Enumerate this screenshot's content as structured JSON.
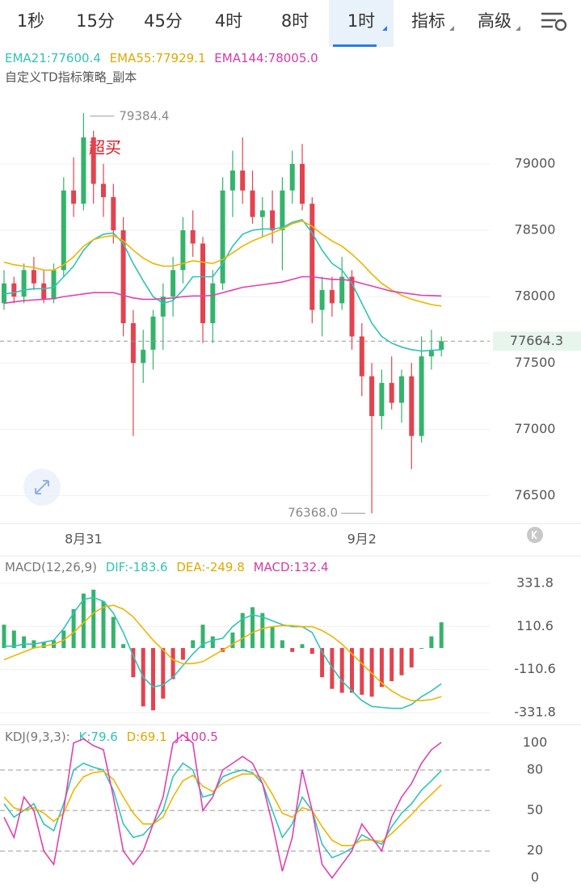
{
  "tabs": [
    "1秒",
    "15分",
    "45分",
    "4时",
    "8时",
    "1时",
    "指标",
    "高级"
  ],
  "selected_tab": 5,
  "chart_data": [
    {
      "type": "candlestick",
      "legend_labels": [
        "EMA21:77600.4",
        "EMA55:77929.1",
        "EMA144:78005.0"
      ],
      "subtitle": "自定义TD指标策略_副本",
      "annotation": "超买",
      "max_label": "79384.4",
      "min_label": "76368.0",
      "last_price_label": "77664.3",
      "categories": [
        null,
        null,
        null,
        null,
        null,
        null,
        null,
        null,
        "8月31",
        null,
        null,
        null,
        null,
        null,
        null,
        null,
        null,
        null,
        null,
        null,
        null,
        null,
        null,
        null,
        null,
        null,
        null,
        null,
        null,
        null,
        null,
        null,
        null,
        null,
        null,
        null,
        "9月2",
        null,
        null,
        null,
        null,
        null,
        null,
        null,
        null
      ],
      "open": [
        77950,
        78100,
        78000,
        78200,
        78100,
        77980,
        78200,
        78800,
        78700,
        79200,
        78850,
        78750,
        78500,
        77800,
        77500,
        77600,
        77850,
        78000,
        78200,
        78500,
        78400,
        77800,
        78100,
        78800,
        78950,
        78800,
        78600,
        78650,
        78500,
        78800,
        79000,
        78700,
        77900,
        78050,
        77950,
        78150,
        77700,
        77400,
        77100,
        77350,
        77200,
        77400,
        76950,
        77550,
        77600
      ],
      "high": [
        78200,
        78150,
        78250,
        78300,
        78200,
        78250,
        78900,
        79050,
        79384.4,
        79250,
        79000,
        78850,
        78600,
        77900,
        77750,
        77900,
        78100,
        78300,
        78600,
        78650,
        78450,
        78200,
        78900,
        79100,
        79200,
        78950,
        78750,
        78800,
        78900,
        79100,
        79150,
        78750,
        78150,
        78150,
        78300,
        78200,
        77800,
        77500,
        77450,
        77550,
        77450,
        77500,
        77700,
        77750,
        77700
      ],
      "low": [
        77900,
        77950,
        77950,
        78050,
        77950,
        77950,
        78150,
        78600,
        78650,
        78700,
        78600,
        78400,
        77700,
        76950,
        77350,
        77450,
        77600,
        77850,
        78100,
        78300,
        77650,
        77650,
        78050,
        78600,
        78700,
        78550,
        78450,
        78400,
        78200,
        78700,
        78650,
        77800,
        77700,
        77850,
        77900,
        77600,
        77250,
        76368,
        77000,
        77150,
        77050,
        76700,
        76900,
        77450,
        77550
      ],
      "close": [
        78100,
        78000,
        78200,
        78100,
        77980,
        78200,
        78800,
        78700,
        79200,
        78850,
        78750,
        78500,
        77800,
        77500,
        77600,
        77850,
        78000,
        78200,
        78500,
        78400,
        77800,
        78100,
        78800,
        78950,
        78800,
        78600,
        78650,
        78500,
        78800,
        79000,
        78700,
        77900,
        78050,
        77950,
        78150,
        77700,
        77400,
        77100,
        77350,
        77200,
        77400,
        76950,
        77550,
        77600,
        77664.3
      ],
      "colors": {
        "up": "#35b36b",
        "down": "#e2434f"
      },
      "series": [
        {
          "color": "#2ec4b6",
          "values": [
            78020,
            78030,
            78050,
            78060,
            78060,
            78070,
            78150,
            78230,
            78350,
            78430,
            78470,
            78480,
            78400,
            78250,
            78120,
            78000,
            77950,
            77970,
            78050,
            78150,
            78150,
            78150,
            78250,
            78380,
            78470,
            78500,
            78510,
            78510,
            78520,
            78560,
            78580,
            78480,
            78350,
            78250,
            78200,
            78100,
            77950,
            77800,
            77700,
            77650,
            77620,
            77600,
            77590,
            77595,
            77600.4
          ]
        },
        {
          "color": "#f0b400",
          "values": [
            78260,
            78240,
            78230,
            78220,
            78200,
            78200,
            78240,
            78300,
            78380,
            78430,
            78450,
            78460,
            78420,
            78350,
            78290,
            78250,
            78230,
            78230,
            78250,
            78270,
            78260,
            78250,
            78280,
            78330,
            78380,
            78420,
            78450,
            78480,
            78510,
            78550,
            78570,
            78530,
            78470,
            78420,
            78380,
            78320,
            78250,
            78170,
            78100,
            78050,
            78010,
            77980,
            77960,
            77940,
            77929.1
          ]
        },
        {
          "color": "#e040b0",
          "values": [
            77950,
            77960,
            77970,
            77975,
            77980,
            77985,
            78000,
            78010,
            78020,
            78030,
            78030,
            78030,
            78010,
            77990,
            77980,
            77980,
            77985,
            77990,
            78000,
            78005,
            78005,
            78010,
            78030,
            78050,
            78070,
            78080,
            78090,
            78100,
            78110,
            78130,
            78150,
            78150,
            78140,
            78130,
            78130,
            78120,
            78100,
            78080,
            78060,
            78040,
            78030,
            78020,
            78010,
            78008,
            78005
          ]
        }
      ],
      "ylim": [
        76290,
        79870
      ],
      "yticks": [
        76500,
        77000,
        77500,
        78000,
        78500,
        79000
      ]
    },
    {
      "type": "macd",
      "title": "MACD(12,26,9)",
      "legend_labels": [
        "DIF:-183.6",
        "DEA:-249.8",
        "MACD:132.4"
      ],
      "colors": {
        "up": "#35b36b",
        "down": "#e2434f"
      },
      "series": [
        {
          "color": "#2ec4b6",
          "values": [
            10,
            10,
            20,
            20,
            30,
            40,
            100,
            180,
            250,
            260,
            240,
            180,
            80,
            -40,
            -150,
            -200,
            -190,
            -150,
            -90,
            -30,
            20,
            40,
            50,
            110,
            150,
            170,
            160,
            140,
            120,
            110,
            110,
            80,
            -20,
            -100,
            -170,
            -220,
            -270,
            -300,
            -305,
            -310,
            -310,
            -290,
            -250,
            -220,
            -183.6
          ]
        },
        {
          "color": "#f0b400",
          "values": [
            -60,
            -40,
            -20,
            0,
            10,
            20,
            40,
            80,
            130,
            180,
            210,
            220,
            200,
            160,
            100,
            40,
            -10,
            -60,
            -80,
            -80,
            -70,
            -40,
            -10,
            20,
            50,
            80,
            100,
            110,
            115,
            115,
            110,
            110,
            90,
            60,
            20,
            -30,
            -80,
            -130,
            -180,
            -220,
            -250,
            -270,
            -270,
            -265,
            -249.8
          ]
        },
        {
          "color": "#e040b0",
          "values": [
            120,
            90,
            60,
            40,
            30,
            40,
            90,
            200,
            280,
            300,
            240,
            160,
            20,
            -150,
            -300,
            -320,
            -260,
            -160,
            -60,
            40,
            120,
            60,
            -20,
            80,
            180,
            210,
            180,
            110,
            40,
            -20,
            20,
            -30,
            -150,
            -210,
            -230,
            -230,
            -240,
            -250,
            -200,
            -170,
            -140,
            -100,
            0,
            60,
            132.4
          ]
        }
      ],
      "ylim": [
        -373.5,
        465.3
      ],
      "yticks": [
        -331.8,
        -110.6,
        110.6,
        331.8
      ]
    },
    {
      "type": "kdj",
      "title": "KDJ(9,3,3):",
      "legend_labels": [
        "K:79.6",
        "D:69.1",
        "J:100.5"
      ],
      "series": [
        {
          "color": "#2ec4b6",
          "values": [
            55,
            45,
            50,
            55,
            40,
            35,
            55,
            80,
            85,
            82,
            80,
            65,
            40,
            30,
            32,
            40,
            50,
            75,
            85,
            80,
            60,
            62,
            75,
            78,
            80,
            78,
            70,
            50,
            30,
            40,
            60,
            50,
            25,
            15,
            18,
            22,
            32,
            28,
            25,
            38,
            48,
            55,
            65,
            72,
            79.6
          ]
        },
        {
          "color": "#f0b400",
          "values": [
            60,
            52,
            50,
            52,
            48,
            42,
            48,
            65,
            75,
            78,
            79,
            73,
            60,
            48,
            40,
            40,
            45,
            60,
            72,
            76,
            68,
            64,
            70,
            74,
            77,
            77,
            74,
            62,
            48,
            45,
            52,
            50,
            38,
            28,
            24,
            24,
            28,
            28,
            27,
            33,
            40,
            47,
            55,
            62,
            69.1
          ]
        },
        {
          "color": "#e040b0",
          "values": [
            45,
            30,
            60,
            50,
            20,
            10,
            50,
            100,
            103,
            98,
            95,
            60,
            20,
            10,
            20,
            40,
            60,
            100,
            106,
            100,
            50,
            60,
            80,
            85,
            90,
            85,
            70,
            40,
            5,
            30,
            80,
            50,
            10,
            0,
            10,
            20,
            40,
            30,
            20,
            45,
            60,
            70,
            85,
            95,
            100.5
          ]
        }
      ],
      "levels": [
        20,
        50,
        80
      ],
      "ylim": [
        -8,
        112.3
      ],
      "yticks": [
        0,
        20,
        50,
        80,
        100
      ]
    }
  ]
}
